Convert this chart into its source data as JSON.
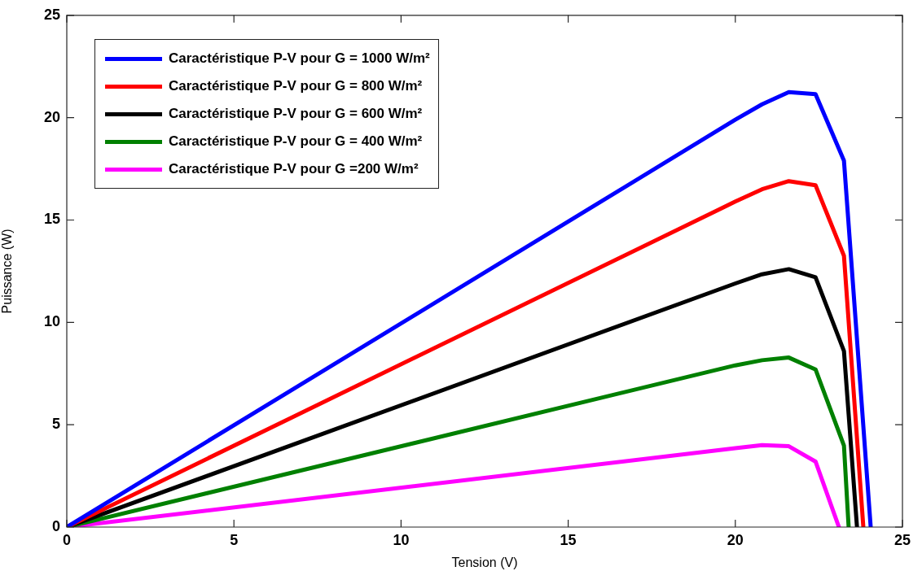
{
  "chart_data": {
    "type": "line",
    "xlabel": "Tension (V)",
    "ylabel": "Puissance (W)",
    "xlim": [
      0,
      25
    ],
    "ylim": [
      0,
      25
    ],
    "xticks": [
      0,
      5,
      10,
      15,
      20,
      25
    ],
    "yticks": [
      0,
      5,
      10,
      15,
      20,
      25
    ],
    "grid": false,
    "legend": "top left",
    "marker": "none",
    "line_style": "solid",
    "series": [
      {
        "name": "Caractéristique P-V pour G = 1000 W/m²",
        "color": "#0000ff",
        "x": [
          0,
          20,
          20.8,
          21.6,
          22.4,
          23.25,
          24.05
        ],
        "values": [
          0,
          19.9,
          20.65,
          21.25,
          21.15,
          17.9,
          0
        ]
      },
      {
        "name": "Caractéristique P-V pour G = 800 W/m²",
        "color": "#ff0000",
        "x": [
          0,
          20,
          20.8,
          21.6,
          22.4,
          23.25,
          23.83
        ],
        "values": [
          0,
          15.9,
          16.5,
          16.9,
          16.7,
          13.25,
          0
        ]
      },
      {
        "name": "Caractéristique P-V pour G = 600 W/m²",
        "color": "#000000",
        "x": [
          0,
          20,
          20.8,
          21.6,
          22.4,
          23.25,
          23.64
        ],
        "values": [
          0,
          11.9,
          12.35,
          12.6,
          12.2,
          8.6,
          0
        ]
      },
      {
        "name": "Caractéristique P-V pour G = 400 W/m²",
        "color": "#008000",
        "x": [
          0,
          20,
          20.8,
          21.6,
          22.4,
          23.25,
          23.39
        ],
        "values": [
          0,
          7.9,
          8.15,
          8.28,
          7.7,
          3.98,
          0
        ]
      },
      {
        "name": "Caractéristique P-V pour G =200 W/m²",
        "color": "#ff00ff",
        "x": [
          0,
          20,
          20.8,
          21.6,
          22.4,
          23.1
        ],
        "values": [
          0,
          3.85,
          4.0,
          3.95,
          3.2,
          0
        ]
      }
    ]
  }
}
